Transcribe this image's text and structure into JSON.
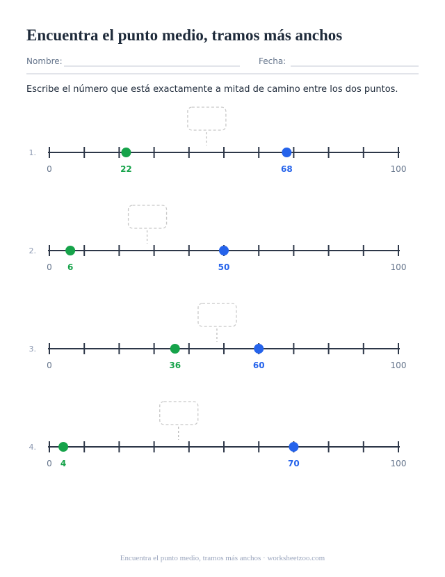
{
  "header": {
    "title": "Encuentra el punto medio, tramos más anchos",
    "name_label": "Nombre:",
    "date_label": "Fecha:"
  },
  "instruction": "Escribe el número que está exactamente a mitad de camino entre los dos puntos.",
  "ticks": [
    0,
    10,
    20,
    30,
    40,
    50,
    60,
    70,
    80,
    90,
    100
  ],
  "problems": [
    {
      "number": "1.",
      "start": 0,
      "end": 100,
      "point_a": 22,
      "point_b": 68
    },
    {
      "number": "2.",
      "start": 0,
      "end": 100,
      "point_a": 6,
      "point_b": 50
    },
    {
      "number": "3.",
      "start": 0,
      "end": 100,
      "point_a": 36,
      "point_b": 60
    },
    {
      "number": "4.",
      "start": 0,
      "end": 100,
      "point_a": 4,
      "point_b": 70
    }
  ],
  "footer": "Encuentra el punto medio, tramos más anchos · worksheetzoo.com"
}
